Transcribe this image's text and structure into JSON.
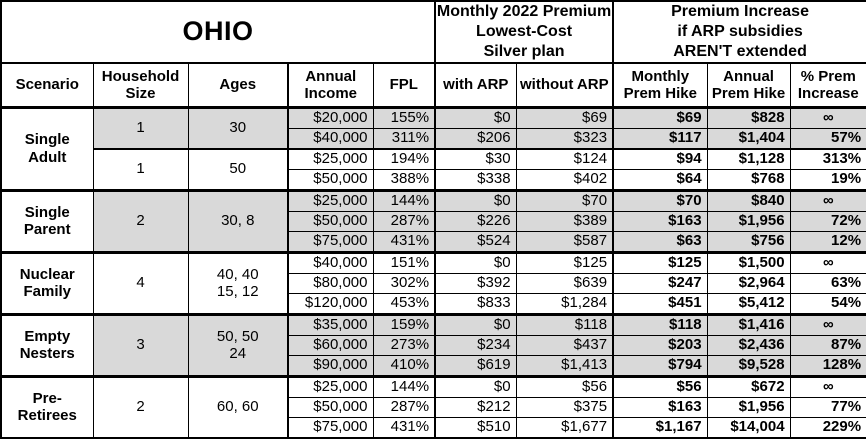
{
  "colors": {
    "shaded_row_bg": "#d9d9d9",
    "border": "#000000",
    "background": "#ffffff"
  },
  "chart_data": {
    "type": "table",
    "title": "OHIO",
    "premium_group_title": "Monthly 2022 Premium\nLowest-Cost\nSilver plan",
    "increase_group_title": "Premium Increase\nif ARP subsidies\nAREN'T extended",
    "columns": [
      "Scenario",
      "Household\nSize",
      "Ages",
      "Annual\nIncome",
      "FPL",
      "with ARP",
      "without ARP",
      "Monthly\nPrem Hike",
      "Annual\nPrem Hike",
      "% Prem\nIncrease"
    ],
    "groups": [
      {
        "scenario": "Single\nAdult",
        "subgroups": [
          {
            "household_size": "1",
            "ages": "30",
            "shaded": true,
            "rows": [
              [
                "$20,000",
                "155%",
                "$0",
                "$69",
                "$69",
                "$828",
                "∞"
              ],
              [
                "$40,000",
                "311%",
                "$206",
                "$323",
                "$117",
                "$1,404",
                "57%"
              ]
            ]
          },
          {
            "household_size": "1",
            "ages": "50",
            "shaded": false,
            "rows": [
              [
                "$25,000",
                "194%",
                "$30",
                "$124",
                "$94",
                "$1,128",
                "313%"
              ],
              [
                "$50,000",
                "388%",
                "$338",
                "$402",
                "$64",
                "$768",
                "19%"
              ]
            ]
          }
        ]
      },
      {
        "scenario": "Single\nParent",
        "subgroups": [
          {
            "household_size": "2",
            "ages": "30, 8",
            "shaded": true,
            "rows": [
              [
                "$25,000",
                "144%",
                "$0",
                "$70",
                "$70",
                "$840",
                "∞"
              ],
              [
                "$50,000",
                "287%",
                "$226",
                "$389",
                "$163",
                "$1,956",
                "72%"
              ],
              [
                "$75,000",
                "431%",
                "$524",
                "$587",
                "$63",
                "$756",
                "12%"
              ]
            ]
          }
        ]
      },
      {
        "scenario": "Nuclear\nFamily",
        "subgroups": [
          {
            "household_size": "4",
            "ages": "40, 40\n15, 12",
            "shaded": false,
            "rows": [
              [
                "$40,000",
                "151%",
                "$0",
                "$125",
                "$125",
                "$1,500",
                "∞"
              ],
              [
                "$80,000",
                "302%",
                "$392",
                "$639",
                "$247",
                "$2,964",
                "63%"
              ],
              [
                "$120,000",
                "453%",
                "$833",
                "$1,284",
                "$451",
                "$5,412",
                "54%"
              ]
            ]
          }
        ]
      },
      {
        "scenario": "Empty\nNesters",
        "subgroups": [
          {
            "household_size": "3",
            "ages": "50, 50\n24",
            "shaded": true,
            "rows": [
              [
                "$35,000",
                "159%",
                "$0",
                "$118",
                "$118",
                "$1,416",
                "∞"
              ],
              [
                "$60,000",
                "273%",
                "$234",
                "$437",
                "$203",
                "$2,436",
                "87%"
              ],
              [
                "$90,000",
                "410%",
                "$619",
                "$1,413",
                "$794",
                "$9,528",
                "128%"
              ]
            ]
          }
        ]
      },
      {
        "scenario": "Pre-\nRetirees",
        "subgroups": [
          {
            "household_size": "2",
            "ages": "60, 60",
            "shaded": false,
            "rows": [
              [
                "$25,000",
                "144%",
                "$0",
                "$56",
                "$56",
                "$672",
                "∞"
              ],
              [
                "$50,000",
                "287%",
                "$212",
                "$375",
                "$163",
                "$1,956",
                "77%"
              ],
              [
                "$75,000",
                "431%",
                "$510",
                "$1,677",
                "$1,167",
                "$14,004",
                "229%"
              ]
            ]
          }
        ]
      }
    ]
  }
}
